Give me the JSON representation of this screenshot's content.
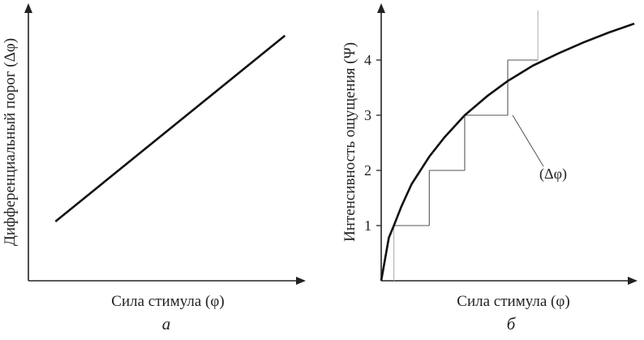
{
  "chart_data": [
    {
      "type": "line",
      "panel_label": "а",
      "xlabel": "Сила стимула (φ)",
      "ylabel": "Дифференциальный порог (Δφ)",
      "xlim": [
        0,
        10
      ],
      "ylim": [
        0,
        10
      ],
      "x_ticks": [],
      "y_ticks": [],
      "series": [
        {
          "x": [
            1.0,
            9.5
          ],
          "y": [
            2.2,
            9.1
          ]
        }
      ]
    },
    {
      "type": "line",
      "panel_label": "б",
      "xlabel": "Сила стимула (φ)",
      "ylabel": "Интенсивность ощущения (Ψ)",
      "xlim": [
        0,
        10
      ],
      "ylim": [
        0,
        5
      ],
      "y_ticks": [
        1,
        2,
        3,
        4
      ],
      "series": [
        {
          "x": [
            0,
            0.3,
            0.5,
            0.8,
            1.2,
            1.9,
            2.5,
            3.3,
            4.2,
            5.0,
            6.0,
            7.0,
            8.0,
            9.0,
            10.0
          ],
          "y": [
            0,
            0.78,
            1.0,
            1.35,
            1.75,
            2.25,
            2.6,
            3.0,
            3.35,
            3.62,
            3.9,
            4.12,
            4.32,
            4.5,
            4.66
          ]
        }
      ],
      "steps": {
        "x": [
          0.5,
          1.9,
          3.3,
          5.0
        ],
        "y": [
          1,
          2,
          3,
          4
        ]
      },
      "annotation": {
        "text": "(Δφ)"
      }
    }
  ]
}
